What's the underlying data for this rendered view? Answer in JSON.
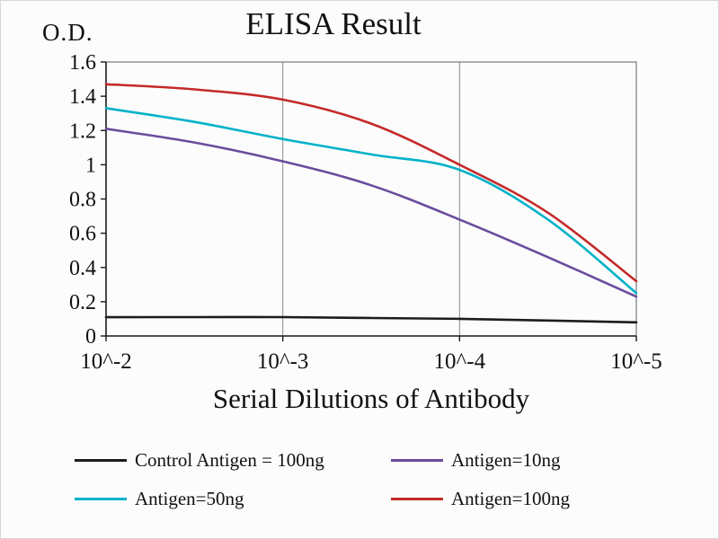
{
  "chart_data": {
    "type": "line",
    "title": "ELISA Result",
    "ylabel": "O.D.",
    "xlabel": "Serial Dilutions of Antibody",
    "x_tick_labels": [
      "10^-2",
      "10^-3",
      "10^-4",
      "10^-5"
    ],
    "y_ticks": [
      0,
      0.2,
      0.4,
      0.6,
      0.8,
      1,
      1.2,
      1.4,
      1.6
    ],
    "y_tick_labels": [
      "0",
      "0.2",
      "0.4",
      "0.6",
      "0.8",
      "1",
      "1.2",
      "1.4",
      "1.6"
    ],
    "ylim": [
      0,
      1.6
    ],
    "grid": "vertical-gridlines-at-x-ticks",
    "legend_position": "bottom",
    "x": [
      0,
      0.5,
      1,
      1.5,
      2,
      2.5,
      3
    ],
    "x_note": "0=10^-2, 1=10^-3, 2=10^-4, 3=10^-5 (serial dilution exponent index)",
    "series": [
      {
        "name": "Control Antigen = 100ng",
        "color": "#1c1c1c",
        "values": [
          0.11,
          0.11,
          0.11,
          0.105,
          0.1,
          0.09,
          0.08
        ]
      },
      {
        "name": "Antigen=10ng",
        "color": "#6b4c9d",
        "values": [
          1.21,
          1.13,
          1.02,
          0.88,
          0.68,
          0.46,
          0.23
        ]
      },
      {
        "name": "Antigen=50ng",
        "color": "#00b2c8",
        "values": [
          1.33,
          1.25,
          1.15,
          1.06,
          0.97,
          0.68,
          0.25
        ]
      },
      {
        "name": "Antigen=100ng",
        "color": "#c42a2a",
        "values": [
          1.47,
          1.44,
          1.38,
          1.24,
          1.0,
          0.72,
          0.32
        ]
      }
    ]
  }
}
